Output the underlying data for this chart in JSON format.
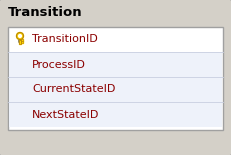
{
  "title": "Transition",
  "fields": [
    "TransitionID",
    "ProcessID",
    "CurrentStateID",
    "NextStateID"
  ],
  "bg_outer": "#d4d0c8",
  "bg_table": "#ffffff",
  "bg_row_alt": "#eef2fa",
  "border_outer_color": "#a0a0a0",
  "border_inner_color": "#c8cfe0",
  "header_text_color": "#000000",
  "field_text_color": "#8b0000",
  "title_fontsize": 9.5,
  "field_fontsize": 8.0,
  "key_color": "#ffd700",
  "key_outline": "#b8860b",
  "figw": 2.31,
  "figh": 1.55,
  "dpi": 100
}
